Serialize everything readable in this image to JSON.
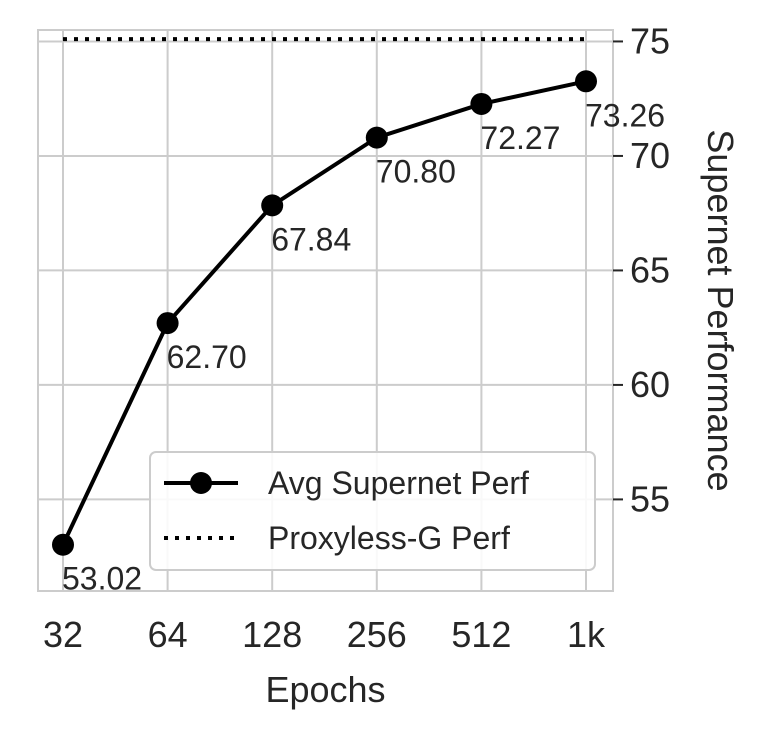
{
  "chart_data": {
    "type": "line",
    "xlabel": "Epochs",
    "ylabel": "Supernet Performance",
    "categories": [
      "32",
      "64",
      "128",
      "256",
      "512",
      "1k"
    ],
    "ylim": [
      51,
      75.5
    ],
    "yticks": [
      55,
      60,
      65,
      70,
      75
    ],
    "y_axis_side": "right",
    "grid": true,
    "legend_position": "lower-right",
    "series": [
      {
        "name": "Avg Supernet Perf",
        "style": "solid-marker",
        "color": "#000000",
        "values": [
          53.02,
          62.7,
          67.84,
          70.8,
          72.27,
          73.26
        ],
        "labels": [
          "53.02",
          "62.70",
          "67.84",
          "70.80",
          "72.27",
          "73.26"
        ]
      },
      {
        "name": "Proxyless-G Perf",
        "style": "dotted",
        "color": "#000000",
        "values": [
          75.1,
          75.1,
          75.1,
          75.1,
          75.1,
          75.1
        ]
      }
    ]
  }
}
